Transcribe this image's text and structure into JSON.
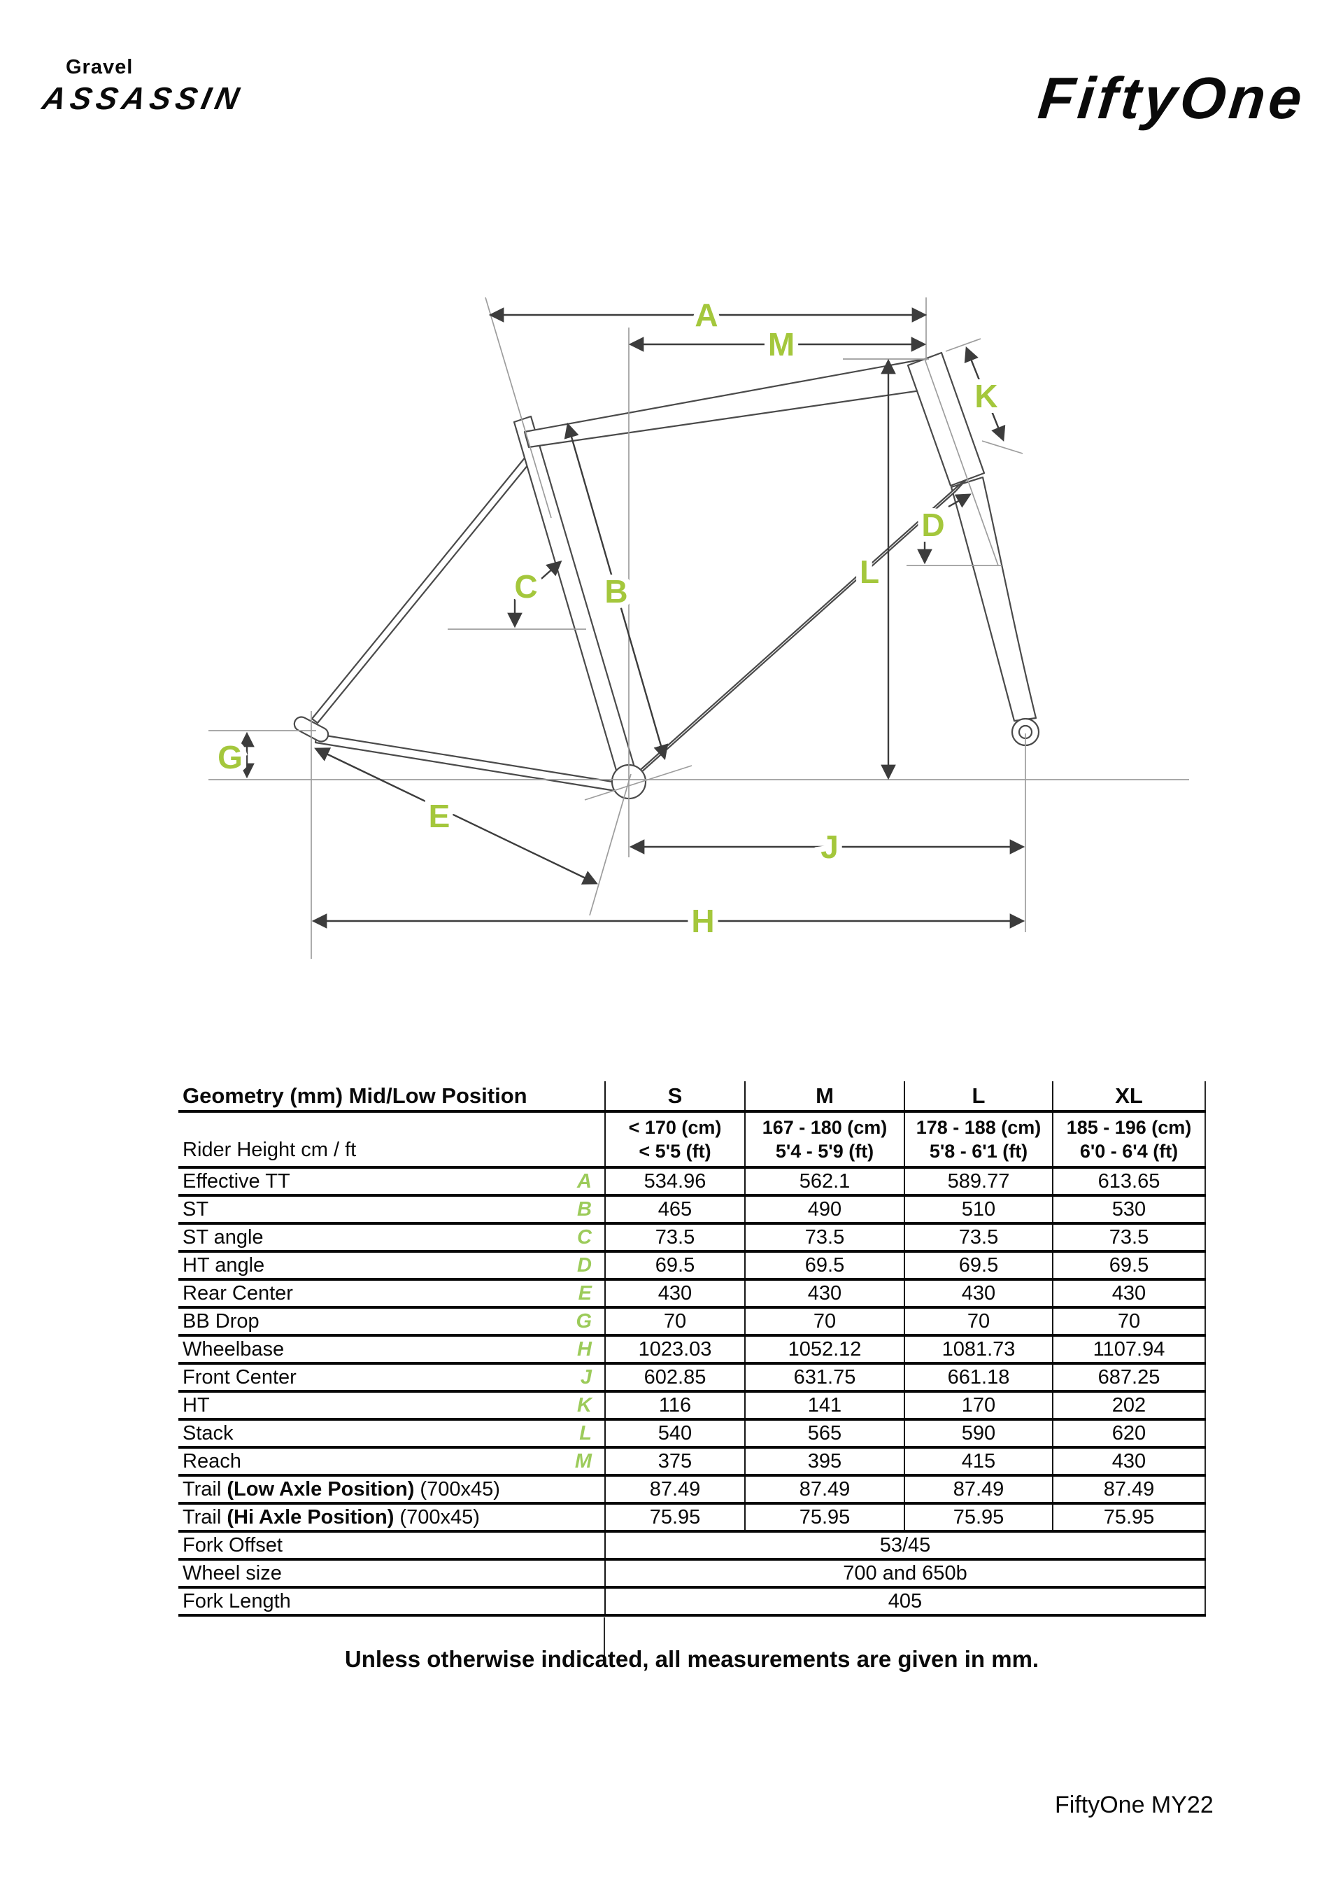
{
  "page": {
    "brand_left_line1": "Gravel",
    "brand_left_line2": "ASSASSIN",
    "brand_right": "FiftyOne",
    "footer_note": "Unless otherwise indicated, all measurements are given in mm.",
    "doc_ref": "FiftyOne MY22"
  },
  "colors": {
    "diagram_label_green": "#a4c73c",
    "table_key_green": "#9ccb5a",
    "line_dark": "#3c3c3c",
    "line_gray": "#9d9d9d"
  },
  "diagram": {
    "labels": [
      "A",
      "M",
      "K",
      "D",
      "C",
      "B",
      "L",
      "G",
      "E",
      "J",
      "H"
    ]
  },
  "table": {
    "title": "Geometry (mm) Mid/Low Position",
    "sizes": [
      "S",
      "M",
      "L",
      "XL"
    ],
    "rider_height": {
      "label": "Rider Height cm / ft",
      "values": [
        [
          "< 170 (cm)",
          "< 5'5 (ft)"
        ],
        [
          "167 - 180 (cm)",
          "5'4 - 5'9 (ft)"
        ],
        [
          "178 - 188 (cm)",
          "5'8 - 6'1 (ft)"
        ],
        [
          "185 - 196 (cm)",
          "6'0 - 6'4 (ft)"
        ]
      ]
    },
    "rows": [
      {
        "label": "Effective TT",
        "key": "A",
        "values": [
          "534.96",
          "562.1",
          "589.77",
          "613.65"
        ]
      },
      {
        "label": "ST",
        "key": "B",
        "values": [
          "465",
          "490",
          "510",
          "530"
        ]
      },
      {
        "label": "ST angle",
        "key": "C",
        "values": [
          "73.5",
          "73.5",
          "73.5",
          "73.5"
        ]
      },
      {
        "label": "HT angle",
        "key": "D",
        "values": [
          "69.5",
          "69.5",
          "69.5",
          "69.5"
        ]
      },
      {
        "label": "Rear Center",
        "key": "E",
        "values": [
          "430",
          "430",
          "430",
          "430"
        ]
      },
      {
        "label": "BB Drop",
        "key": "G",
        "values": [
          "70",
          "70",
          "70",
          "70"
        ]
      },
      {
        "label": "Wheelbase",
        "key": "H",
        "values": [
          "1023.03",
          "1052.12",
          "1081.73",
          "1107.94"
        ]
      },
      {
        "label": "Front Center",
        "key": "J",
        "values": [
          "602.85",
          "631.75",
          "661.18",
          "687.25"
        ]
      },
      {
        "label": "HT",
        "key": "K",
        "values": [
          "116",
          "141",
          "170",
          "202"
        ]
      },
      {
        "label": "Stack",
        "key": "L",
        "values": [
          "540",
          "565",
          "590",
          "620"
        ]
      },
      {
        "label": "Reach",
        "key": "M",
        "values": [
          "375",
          "395",
          "415",
          "430"
        ]
      },
      {
        "parts": [
          {
            "t": "Trail ",
            "b": false
          },
          {
            "t": "(Low Axle Position)",
            "b": true
          },
          {
            "t": " (700x45)",
            "b": false
          }
        ],
        "key": "",
        "values": [
          "87.49",
          "87.49",
          "87.49",
          "87.49"
        ]
      },
      {
        "parts": [
          {
            "t": "Trail ",
            "b": false
          },
          {
            "t": "(Hi Axle Position)",
            "b": true
          },
          {
            "t": " (700x45)",
            "b": false
          }
        ],
        "key": "",
        "values": [
          "75.95",
          "75.95",
          "75.95",
          "75.95"
        ]
      }
    ],
    "merged_rows": [
      {
        "label": "Fork Offset",
        "value": "53/45"
      },
      {
        "label": "Wheel size",
        "value": "700 and 650b"
      },
      {
        "label": "Fork Length",
        "value": "405"
      }
    ]
  }
}
